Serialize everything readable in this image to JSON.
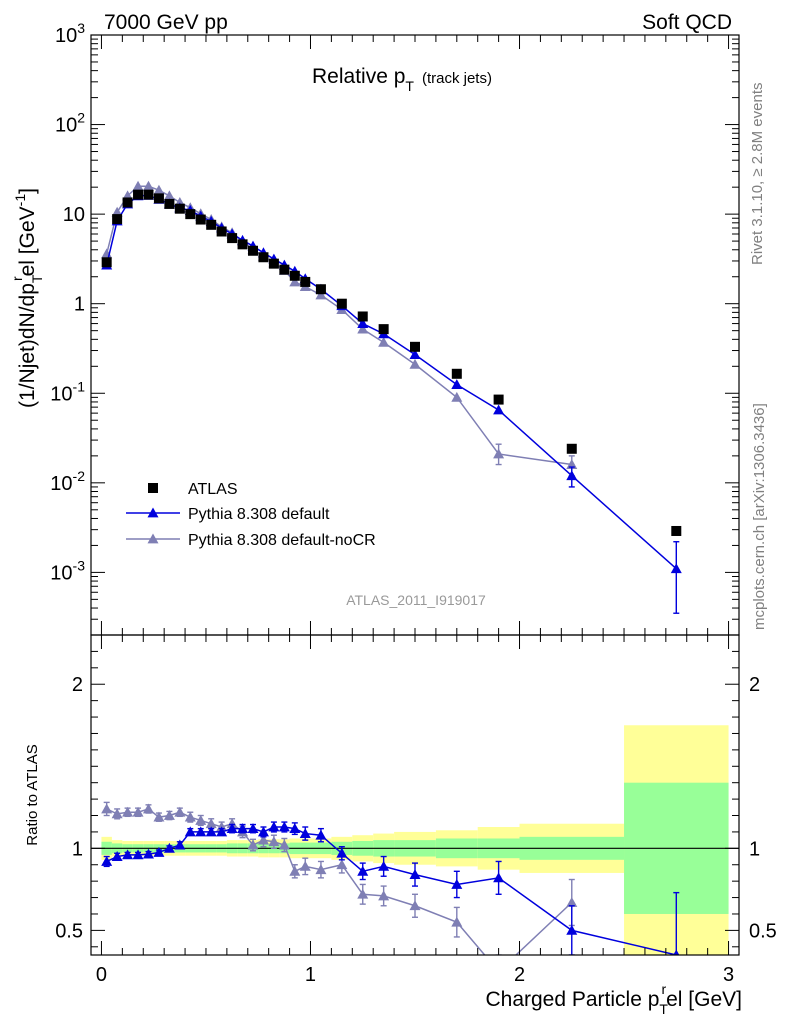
{
  "header": {
    "left": "7000 GeV pp",
    "right": "Soft QCD"
  },
  "side_labels": {
    "rivet": "Rivet 3.1.10, ≥ 2.8M events",
    "mcplots": "mcplots.cern.ch [arXiv:1306.3436]"
  },
  "colors": {
    "atlas": "#000000",
    "default": "#0000dd",
    "nocr": "#7f7fb4",
    "band_inner": "#98ff98",
    "band_outer": "#ffff98"
  },
  "chart_data": [
    {
      "type": "scatter",
      "panel": "main",
      "title": "Relative p_T (track jets)",
      "title_main": "Relative p",
      "title_sub": "T",
      "title_extra": "(track jets)",
      "watermark": "ATLAS_2011_I919017",
      "ylabel": "(1/Njet)dN/dp_T^rel [GeV^-1]",
      "ylabel_parts": {
        "a": "(1/Njet)dN/dp",
        "b": "T",
        "c": "r",
        "d": "el [GeV",
        "e": "-1",
        "f": "]"
      },
      "yscale": "log",
      "xlim": [
        -0.05,
        3.05
      ],
      "ylim": [
        0.0002,
        1000
      ],
      "y_tick_labels": [
        "10^-3",
        "10^-2",
        "10^-1",
        "1",
        "10",
        "10^2",
        "10^3"
      ],
      "legend_position": "lower-left",
      "series": [
        {
          "name": "ATLAS",
          "marker": "square",
          "x": [
            0.025,
            0.075,
            0.125,
            0.175,
            0.225,
            0.275,
            0.325,
            0.375,
            0.425,
            0.475,
            0.525,
            0.575,
            0.625,
            0.675,
            0.725,
            0.775,
            0.825,
            0.875,
            0.925,
            0.975,
            1.05,
            1.15,
            1.25,
            1.35,
            1.5,
            1.7,
            1.9,
            2.25,
            2.75
          ],
          "y": [
            2.9,
            8.8,
            13.5,
            16.5,
            16.5,
            15.0,
            13.0,
            11.5,
            10.0,
            8.7,
            7.6,
            6.4,
            5.4,
            4.6,
            3.9,
            3.3,
            2.8,
            2.4,
            2.05,
            1.75,
            1.45,
            1.0,
            0.72,
            0.52,
            0.33,
            0.165,
            0.085,
            0.024,
            0.0029
          ]
        },
        {
          "name": "Pythia 8.308 default",
          "marker": "triangle",
          "x": [
            0.025,
            0.075,
            0.125,
            0.175,
            0.225,
            0.275,
            0.325,
            0.375,
            0.425,
            0.475,
            0.525,
            0.575,
            0.625,
            0.675,
            0.725,
            0.775,
            0.825,
            0.875,
            0.925,
            0.975,
            1.05,
            1.15,
            1.25,
            1.35,
            1.5,
            1.7,
            1.9,
            2.25,
            2.75
          ],
          "y": [
            2.7,
            8.4,
            13.0,
            16.0,
            16.2,
            14.6,
            13.0,
            11.7,
            11.0,
            9.5,
            8.3,
            7.0,
            6.0,
            5.1,
            4.4,
            3.7,
            3.15,
            2.7,
            2.3,
            1.9,
            1.45,
            0.95,
            0.6,
            0.46,
            0.27,
            0.125,
            0.065,
            0.012,
            0.0011
          ],
          "yerr_lo": [
            0,
            0,
            0,
            0,
            0,
            0,
            0,
            0,
            0,
            0,
            0,
            0,
            0,
            0,
            0,
            0,
            0,
            0,
            0,
            0,
            0,
            0,
            0,
            0,
            0,
            0,
            0,
            0.003,
            0.00075
          ],
          "yerr_hi": [
            0,
            0,
            0,
            0,
            0,
            0,
            0,
            0,
            0,
            0,
            0,
            0,
            0,
            0,
            0,
            0,
            0,
            0,
            0,
            0,
            0,
            0,
            0,
            0,
            0,
            0,
            0,
            0.003,
            0.0011
          ]
        },
        {
          "name": "Pythia 8.308 default-noCR",
          "marker": "triangle",
          "x": [
            0.025,
            0.075,
            0.125,
            0.175,
            0.225,
            0.275,
            0.325,
            0.375,
            0.425,
            0.475,
            0.525,
            0.575,
            0.625,
            0.675,
            0.725,
            0.775,
            0.825,
            0.875,
            0.925,
            0.975,
            1.05,
            1.15,
            1.25,
            1.35,
            1.5,
            1.7,
            1.9,
            2.25,
            2.75
          ],
          "y": [
            3.6,
            10.5,
            16.0,
            20.5,
            20.5,
            18.5,
            16.0,
            13.5,
            11.8,
            10.1,
            8.7,
            7.2,
            6.2,
            5.0,
            4.0,
            3.4,
            2.85,
            2.35,
            1.75,
            1.55,
            1.25,
            0.86,
            0.52,
            0.37,
            0.21,
            0.09,
            0.021,
            0.016,
            null
          ],
          "yerr_lo": [
            0,
            0,
            0,
            0,
            0,
            0,
            0,
            0,
            0,
            0,
            0,
            0,
            0,
            0,
            0,
            0,
            0,
            0,
            0,
            0,
            0,
            0,
            0,
            0,
            0,
            0,
            0.005,
            0.004,
            0
          ],
          "yerr_hi": [
            0,
            0,
            0,
            0,
            0,
            0,
            0,
            0,
            0,
            0,
            0,
            0,
            0,
            0,
            0,
            0,
            0,
            0,
            0,
            0,
            0,
            0,
            0,
            0,
            0,
            0,
            0.006,
            0.004,
            0
          ]
        }
      ]
    },
    {
      "type": "line",
      "panel": "ratio",
      "ylabel": "Ratio to ATLAS",
      "xlabel": "Charged Particle p_T^rel [GeV]",
      "xlabel_parts": {
        "a": "Charged Particle p",
        "b": "T",
        "c": "r",
        "d": "el [GeV]"
      },
      "xlim": [
        -0.05,
        3.05
      ],
      "ylim": [
        0.35,
        2.3
      ],
      "x_tick_labels": [
        "0",
        "1",
        "2",
        "3"
      ],
      "y_tick_labels": [
        "0.5",
        "1",
        "2"
      ],
      "reference_line": 1,
      "bands": {
        "edges": [
          0,
          0.05,
          0.1,
          0.15,
          0.2,
          0.25,
          0.3,
          0.35,
          0.4,
          0.45,
          0.5,
          0.55,
          0.6,
          0.65,
          0.7,
          0.75,
          0.8,
          0.85,
          0.9,
          0.95,
          1.0,
          1.1,
          1.2,
          1.3,
          1.4,
          1.6,
          1.8,
          2.0,
          2.5,
          3.0
        ],
        "inner": [
          0.04,
          0.03,
          0.025,
          0.025,
          0.025,
          0.025,
          0.025,
          0.025,
          0.025,
          0.025,
          0.025,
          0.025,
          0.03,
          0.03,
          0.03,
          0.03,
          0.03,
          0.03,
          0.035,
          0.035,
          0.035,
          0.04,
          0.045,
          0.05,
          0.05,
          0.06,
          0.06,
          0.07,
          0.4
        ],
        "outer": [
          0.07,
          0.05,
          0.045,
          0.045,
          0.045,
          0.045,
          0.045,
          0.045,
          0.045,
          0.045,
          0.045,
          0.045,
          0.05,
          0.05,
          0.05,
          0.055,
          0.055,
          0.055,
          0.06,
          0.06,
          0.06,
          0.07,
          0.08,
          0.09,
          0.1,
          0.11,
          0.13,
          0.15,
          0.75
        ]
      },
      "series": [
        {
          "name": "Pythia 8.308 default",
          "x": [
            0.025,
            0.075,
            0.125,
            0.175,
            0.225,
            0.275,
            0.325,
            0.375,
            0.425,
            0.475,
            0.525,
            0.575,
            0.625,
            0.675,
            0.725,
            0.775,
            0.825,
            0.875,
            0.925,
            0.975,
            1.05,
            1.15,
            1.25,
            1.35,
            1.5,
            1.7,
            1.9,
            2.25,
            2.75
          ],
          "y": [
            0.92,
            0.95,
            0.96,
            0.96,
            0.965,
            0.975,
            1.0,
            1.02,
            1.1,
            1.1,
            1.1,
            1.1,
            1.12,
            1.12,
            1.12,
            1.1,
            1.13,
            1.13,
            1.12,
            1.09,
            1.08,
            0.97,
            0.86,
            0.89,
            0.84,
            0.78,
            0.82,
            0.5,
            0.35
          ],
          "yerr": [
            0.03,
            0.02,
            0.015,
            0.015,
            0.015,
            0.015,
            0.015,
            0.02,
            0.02,
            0.02,
            0.02,
            0.02,
            0.025,
            0.025,
            0.025,
            0.03,
            0.03,
            0.03,
            0.035,
            0.04,
            0.04,
            0.04,
            0.05,
            0.06,
            0.07,
            0.08,
            0.1,
            0.15,
            0.38
          ]
        },
        {
          "name": "Pythia 8.308 default-noCR",
          "x": [
            0.025,
            0.075,
            0.125,
            0.175,
            0.225,
            0.275,
            0.325,
            0.375,
            0.425,
            0.475,
            0.525,
            0.575,
            0.625,
            0.675,
            0.725,
            0.775,
            0.825,
            0.875,
            0.925,
            0.975,
            1.05,
            1.15,
            1.25,
            1.35,
            1.5,
            1.7,
            1.9,
            2.25
          ],
          "y": [
            1.24,
            1.21,
            1.22,
            1.22,
            1.24,
            1.19,
            1.2,
            1.22,
            1.19,
            1.17,
            1.15,
            1.13,
            1.15,
            1.1,
            1.02,
            1.05,
            1.04,
            1.02,
            0.86,
            0.89,
            0.87,
            0.9,
            0.72,
            0.71,
            0.65,
            0.55,
            0.25,
            0.67
          ],
          "yerr": [
            0.04,
            0.03,
            0.025,
            0.025,
            0.025,
            0.025,
            0.025,
            0.025,
            0.03,
            0.03,
            0.03,
            0.03,
            0.03,
            0.035,
            0.035,
            0.04,
            0.04,
            0.04,
            0.04,
            0.05,
            0.05,
            0.05,
            0.06,
            0.06,
            0.07,
            0.09,
            0.1,
            0.14
          ]
        }
      ]
    }
  ]
}
